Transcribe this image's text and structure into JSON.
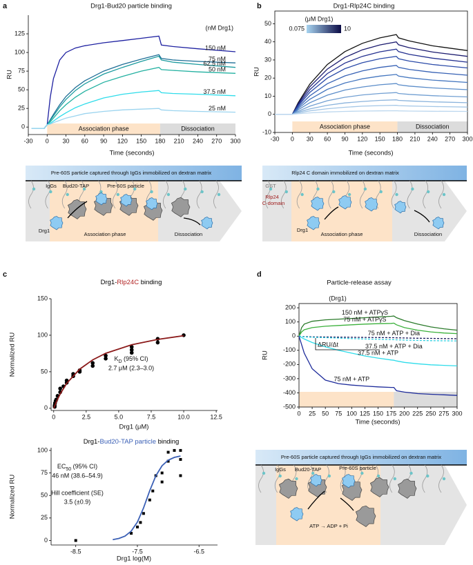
{
  "chart_data": [
    {
      "type": "line",
      "panel": "a",
      "title": "Drg1-Bud20 particle binding",
      "x_label": "Time (seconds)",
      "y_label": "RU",
      "legend_title": "(nM Drg1)",
      "x": [
        -25,
        -5,
        0,
        5,
        10,
        20,
        30,
        45,
        60,
        90,
        120,
        150,
        178,
        182,
        200,
        240,
        300
      ],
      "series": [
        {
          "name": "150 nM",
          "color": "#1c1fa0",
          "values": [
            -2,
            -2,
            3,
            40,
            65,
            90,
            100,
            106,
            109,
            113,
            116,
            119,
            122,
            110,
            108,
            105,
            101
          ]
        },
        {
          "name": "75 nM",
          "color": "#1d6e96",
          "values": [
            -2,
            -2,
            3,
            10,
            17,
            30,
            41,
            53,
            62,
            75,
            84,
            91,
            97,
            92,
            90,
            88,
            86
          ]
        },
        {
          "name": "62.5 nM",
          "color": "#1a9a9e",
          "values": [
            -2,
            -2,
            3,
            9,
            15,
            27,
            37,
            49,
            58,
            71,
            80,
            88,
            95,
            90,
            87,
            84,
            80
          ]
        },
        {
          "name": "50 nM",
          "color": "#21b0a0",
          "values": [
            -2,
            -2,
            3,
            7,
            12,
            22,
            30,
            40,
            48,
            60,
            68,
            75,
            80,
            77,
            76,
            74,
            72
          ]
        },
        {
          "name": "37.5 nM",
          "color": "#2ddcea",
          "values": [
            -2,
            -2,
            3,
            5,
            8,
            14,
            19,
            26,
            31,
            39,
            44,
            47,
            49,
            46,
            45,
            44,
            42
          ]
        },
        {
          "name": "25 nM",
          "color": "#9bd4ef",
          "values": [
            -2,
            -2,
            3,
            4,
            6,
            9,
            12,
            15,
            18,
            21,
            23,
            24,
            25,
            23,
            22,
            21,
            20
          ]
        }
      ],
      "phases": [
        {
          "label": "Association phase",
          "range": [
            0,
            180
          ]
        },
        {
          "label": "Dissociation",
          "range": [
            180,
            300
          ]
        }
      ],
      "xlim": [
        -30,
        300
      ],
      "ylim": [
        -10,
        150
      ],
      "xticks": [
        -30,
        0,
        30,
        60,
        90,
        120,
        150,
        180,
        210,
        240,
        270,
        300
      ],
      "yticks": [
        0,
        25,
        50,
        75,
        100,
        125
      ]
    },
    {
      "type": "line",
      "panel": "b",
      "title": "Drg1-Rlp24C binding",
      "x_label": "Time (seconds)",
      "y_label": "RU",
      "legend_title": "(μM Drg1)",
      "colorbar": [
        0.075,
        10
      ],
      "colorbar_colors": [
        "#a8d4f0",
        "#0b0b45"
      ],
      "x": [
        -30,
        -2,
        0,
        10,
        30,
        60,
        90,
        120,
        150,
        178,
        182,
        200,
        240,
        300
      ],
      "series": [
        {
          "color": "#111111",
          "values": [
            0,
            0,
            0,
            6.4,
            16.7,
            27.5,
            34.6,
            39.2,
            42.2,
            44,
            42.2,
            40.5,
            37.8,
            35.2
          ]
        },
        {
          "color": "#1a1a6e",
          "values": [
            0,
            0,
            0,
            5.8,
            15.2,
            25,
            31.4,
            35.6,
            38.3,
            40,
            38.4,
            36.8,
            34.4,
            32
          ]
        },
        {
          "color": "#232f8f",
          "values": [
            0,
            0,
            0,
            5.2,
            13.6,
            22.5,
            28.3,
            32,
            34.5,
            36,
            34.6,
            33.1,
            31,
            28.8
          ]
        },
        {
          "color": "#2a4aa8",
          "values": [
            0,
            0,
            0,
            4.6,
            12.1,
            20,
            25.2,
            28.5,
            30.7,
            32,
            30.7,
            29.4,
            27.5,
            25.6
          ]
        },
        {
          "color": "#3560b4",
          "values": [
            0,
            0,
            0,
            3.9,
            10.2,
            16.9,
            21.2,
            24,
            25.9,
            27,
            25.9,
            24.8,
            23.2,
            21.6
          ]
        },
        {
          "color": "#4476bf",
          "values": [
            0,
            0,
            0,
            3.2,
            8.3,
            13.8,
            17.3,
            19.6,
            21.1,
            22,
            21.1,
            20.2,
            18.9,
            17.6
          ]
        },
        {
          "color": "#5a8cc9",
          "values": [
            0,
            0,
            0,
            2.5,
            6.4,
            10.6,
            13.4,
            15.1,
            16.3,
            17,
            16.3,
            15.6,
            14.6,
            13.6
          ]
        },
        {
          "color": "#719fd2",
          "values": [
            0,
            0,
            0,
            1.7,
            4.5,
            7.5,
            9.4,
            10.7,
            11.5,
            12,
            11.5,
            11,
            10.3,
            9.6
          ]
        },
        {
          "color": "#8ab3dc",
          "values": [
            0,
            0,
            0,
            1.2,
            3,
            5,
            6.3,
            7.1,
            7.7,
            8,
            7.7,
            7.4,
            6.9,
            6.4
          ]
        },
        {
          "color": "#a3c6e6",
          "values": [
            0,
            0,
            0,
            0.7,
            1.9,
            3.1,
            3.9,
            4.5,
            4.8,
            5,
            4.8,
            4.6,
            4.3,
            4
          ]
        },
        {
          "color": "#bcd7ee",
          "values": [
            0,
            0,
            0,
            0.3,
            0.8,
            1.3,
            1.6,
            1.8,
            1.9,
            2,
            1.9,
            1.8,
            1.7,
            1.6
          ]
        }
      ],
      "phases": [
        {
          "label": "Association phase",
          "range": [
            0,
            180
          ]
        },
        {
          "label": "Dissociation",
          "range": [
            180,
            300
          ]
        }
      ],
      "xlim": [
        -30,
        300
      ],
      "ylim": [
        -10,
        57
      ],
      "xticks": [
        -30,
        0,
        30,
        60,
        90,
        120,
        150,
        180,
        210,
        240,
        270,
        300
      ],
      "yticks": [
        -10,
        0,
        10,
        20,
        30,
        40,
        50
      ]
    },
    {
      "type": "scatter",
      "panel": "c",
      "title_parts": [
        "Drg1-",
        "Rlp24C",
        " binding"
      ],
      "title_colors": [
        "#000000",
        "#b22222",
        "#000000"
      ],
      "x_label": "Drg1 (μM)",
      "y_label": "Normalized RU",
      "annotation_parts": [
        "K",
        "D",
        " (95% CI)"
      ],
      "annotation_lines": [
        "2.7 μM (2.3–3.0)"
      ],
      "marker": "circle",
      "points": {
        "color": "#000000",
        "x": [
          0.075,
          0.075,
          0.1,
          0.15,
          0.2,
          0.3,
          0.5,
          0.5,
          0.75,
          1,
          1,
          1.5,
          1.5,
          2,
          2,
          3,
          3,
          4,
          4,
          6,
          6,
          6,
          8,
          8,
          10
        ],
        "values": [
          2,
          4,
          7,
          10,
          12,
          17,
          22,
          27,
          30,
          35,
          38,
          44,
          47,
          50,
          52,
          58,
          62,
          68,
          72,
          76,
          80,
          84,
          90,
          95,
          100
        ]
      },
      "fit": {
        "color": "#8b1a1a",
        "x": [
          0,
          0.25,
          0.5,
          1,
          2,
          3,
          4,
          6,
          8,
          10
        ],
        "values": [
          0,
          10.7,
          19.7,
          34.1,
          53.6,
          66.3,
          75.3,
          86.9,
          94.3,
          99.4
        ]
      },
      "xlim": [
        -0.2,
        12.6
      ],
      "ylim": [
        -3,
        150
      ],
      "xticks": [
        0,
        2.5,
        {
          "value": 5,
          "label": "5.0"
        },
        7.5,
        {
          "value": 10,
          "label": "10.0"
        },
        12.5
      ],
      "yticks": [
        0,
        50,
        100,
        150
      ]
    },
    {
      "type": "scatter",
      "title_parts": [
        "Drg1-",
        "Bud20-TAP particle",
        " binding"
      ],
      "title_colors": [
        "#000000",
        "#3a5fb5",
        "#000000"
      ],
      "x_label": "Drg1 log(M)",
      "y_label": "Normalized RU",
      "annotation_parts": [
        "EC",
        "50",
        " (95% CI)"
      ],
      "annotation_lines": [
        "46 nM (38.6–54.9)",
        "Hill coefficient (SE)",
        "3.5 (±0.9)"
      ],
      "marker": "square",
      "points": {
        "color": "#000000",
        "x": [
          -8.5,
          -7.6,
          -7.5,
          -7.45,
          -7.4,
          -7.3,
          -7.25,
          -7.2,
          -7.1,
          -7.1,
          -7,
          -7,
          -6.9,
          -6.8,
          -6.8,
          -6.8
        ],
        "values": [
          0,
          8,
          15,
          20,
          30,
          45,
          55,
          72,
          75,
          65,
          88,
          98,
          100,
          100,
          90,
          72
        ]
      },
      "fit": {
        "color": "#3a5fb5",
        "x": [
          -7.9,
          -7.8,
          -7.7,
          -7.6,
          -7.5,
          -7.4,
          -7.3,
          -7.2,
          -7.1,
          -7,
          -6.9,
          -6.8
        ],
        "values": [
          1,
          2.3,
          4.9,
          10.4,
          20.5,
          36.2,
          55.2,
          71.8,
          83,
          89.2,
          92.3,
          93.8
        ]
      },
      "xlim": [
        -8.9,
        -6.2
      ],
      "ylim": [
        -5,
        103
      ],
      "xticks": [
        -8.5,
        -7.5,
        -6.5
      ],
      "yticks": [
        0,
        25,
        50,
        75,
        100
      ]
    },
    {
      "type": "line",
      "panel": "d",
      "title": "Particle-release assay",
      "x_label": "Time (seconds)",
      "y_label": "RU",
      "legend_title": "(Drg1)",
      "annotation": "ΔRU/Δt",
      "x": [
        0,
        5,
        10,
        25,
        50,
        75,
        100,
        125,
        150,
        175,
        180,
        185,
        200,
        225,
        250,
        275,
        300
      ],
      "series": [
        {
          "name": "150 nM + ATPγS",
          "color": "#2a7a2a",
          "dashed": false,
          "values": [
            0,
            60,
            85,
            105,
            115,
            120,
            125,
            130,
            135,
            140,
            142,
            130,
            110,
            85,
            65,
            52,
            42
          ]
        },
        {
          "name": "75 nM + ATPγS",
          "color": "#3ab03a",
          "dashed": false,
          "values": [
            0,
            30,
            45,
            60,
            70,
            75,
            80,
            85,
            88,
            90,
            92,
            80,
            60,
            42,
            30,
            22,
            18
          ]
        },
        {
          "name": "75 nM + ATP + Dia",
          "color": "#14145a",
          "dashed": true,
          "values": [
            0,
            -2,
            -3,
            -5,
            -6,
            -7,
            -8,
            -9,
            -10,
            -11,
            -11,
            -12,
            -13,
            -15,
            -16,
            -17,
            -18
          ]
        },
        {
          "name": "37.5 nM + ATP + Dia",
          "color": "#2ccfe0",
          "dashed": true,
          "values": [
            0,
            -3,
            -5,
            -8,
            -11,
            -14,
            -17,
            -20,
            -22,
            -25,
            -25,
            -26,
            -28,
            -30,
            -32,
            -33,
            -34
          ]
        },
        {
          "name": "37.5 nM + ATP",
          "color": "#2ddcea",
          "dashed": false,
          "values": [
            0,
            -10,
            -20,
            -45,
            -75,
            -100,
            -120,
            -140,
            -155,
            -168,
            -170,
            -175,
            -185,
            -195,
            -202,
            -206,
            -210
          ]
        },
        {
          "name": "75 nM + ATP",
          "color": "#1c2a9a",
          "dashed": false,
          "values": [
            0,
            -60,
            -120,
            -230,
            -310,
            -335,
            -345,
            -352,
            -358,
            -362,
            -362,
            -385,
            -395,
            -405,
            -410,
            -414,
            -418
          ]
        }
      ],
      "phases": [
        {
          "range": [
            0,
            180
          ]
        },
        {
          "range": [
            180,
            300
          ]
        }
      ],
      "xlim": [
        0,
        300
      ],
      "ylim": [
        -500,
        230
      ],
      "xticks": [
        0,
        25,
        50,
        75,
        100,
        125,
        150,
        175,
        200,
        225,
        250,
        275,
        300
      ],
      "yticks": [
        200,
        100,
        0,
        -100,
        -200,
        -300,
        -400,
        -500
      ]
    }
  ],
  "diagram_a": {
    "header": "Pre-60S particle captured through IgGs immobilized on dextran matrix",
    "igg": "IgGs",
    "bud20": "Bud20-TAP",
    "particle": "Pre-60S particle",
    "drg1": "Drg1",
    "association": "Association phase",
    "dissociation": "Dissociation"
  },
  "diagram_b": {
    "header": "Rlp24 C domain immobilized on dextran matrix",
    "gst": "GST",
    "rlp24": "Rlp24",
    "c_domain": "C-domain",
    "drg1": "Drg1",
    "association": "Association phase",
    "dissociation": "Dissociation"
  },
  "diagram_d": {
    "header": "Pre-60S particle captured through IgGs immobilized on dextran matrix",
    "igg": "IgGs",
    "bud20": "Bud20-TAP",
    "particle": "Pre-60S particle",
    "reaction": "ATP → ADP + Pi"
  }
}
